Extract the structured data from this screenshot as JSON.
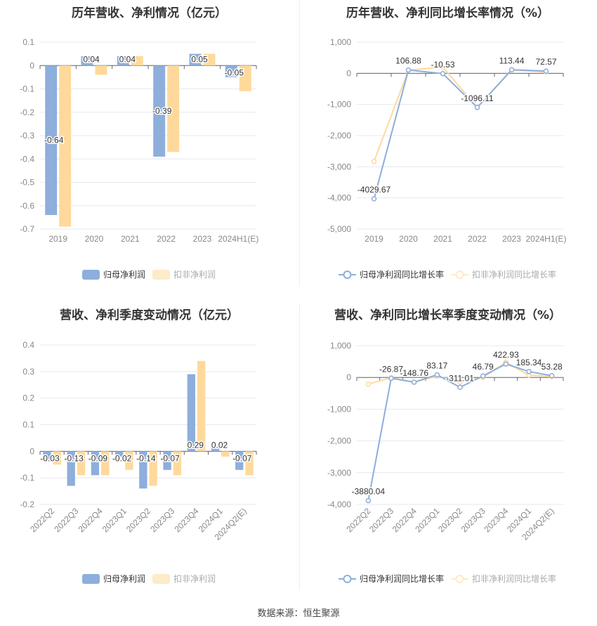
{
  "colors": {
    "blue": "#8eaedb",
    "orange": "#ffd99b",
    "orange_legend": "#fdebc9",
    "grid": "#e3e8f2",
    "axis": "#666666",
    "tick_label": "#888888",
    "title": "#333333"
  },
  "footer": {
    "source": "数据来源：恒生聚源"
  },
  "chart_data": [
    {
      "type": "bar",
      "title": "历年营收、净利情况（亿元）",
      "categories": [
        "2019",
        "2020",
        "2021",
        "2022",
        "2023",
        "2024H1(E)"
      ],
      "series": [
        {
          "name": "归母净利润",
          "values": [
            -0.64,
            0.04,
            0.04,
            -0.39,
            0.05,
            -0.05
          ],
          "labels": [
            "-0.64",
            "0.04",
            "0.04",
            "-0.39",
            "0.05",
            "-0.05"
          ]
        },
        {
          "name": "扣非净利润",
          "values": [
            -0.69,
            -0.04,
            0.04,
            -0.37,
            0.05,
            -0.11
          ]
        }
      ],
      "yticks": [
        "0.1",
        "0",
        "-0.1",
        "-0.2",
        "-0.3",
        "-0.4",
        "-0.5",
        "-0.6",
        "-0.7"
      ],
      "ylim": [
        -0.7,
        0.1
      ],
      "xlabel": "",
      "ylabel": "",
      "grid": true,
      "legend_position": "bottom"
    },
    {
      "type": "line",
      "title": "历年营收、净利同比增长率情况（%）",
      "categories": [
        "2019",
        "2020",
        "2021",
        "2022",
        "2023",
        "2024H1(E)"
      ],
      "series": [
        {
          "name": "归母净利润同比增长率",
          "values": [
            -4029.67,
            106.88,
            -10.53,
            -1096.11,
            113.44,
            72.57
          ],
          "labels": [
            "-4029.67",
            "106.88",
            "-10.53",
            "-1096.11",
            "113.44",
            "72.57"
          ]
        },
        {
          "name": "扣非净利润同比增长率",
          "values": [
            -2830,
            100,
            200,
            -1100,
            110,
            40
          ]
        }
      ],
      "yticks": [
        "1,000",
        "0",
        "-1,000",
        "-2,000",
        "-3,000",
        "-4,000",
        "-5,000"
      ],
      "ylim": [
        -5000,
        1000
      ],
      "xlabel": "",
      "ylabel": "",
      "grid": true,
      "legend_position": "bottom"
    },
    {
      "type": "bar",
      "title": "营收、净利季度变动情况（亿元）",
      "categories": [
        "2022Q2",
        "2022Q3",
        "2022Q4",
        "2023Q1",
        "2023Q2",
        "2023Q3",
        "2023Q4",
        "2024Q1",
        "2024Q2(E)"
      ],
      "series": [
        {
          "name": "归母净利润",
          "values": [
            -0.03,
            -0.13,
            -0.09,
            -0.02,
            -0.14,
            -0.07,
            0.29,
            0.02,
            -0.07
          ],
          "labels": [
            "-0.03",
            "-0.13",
            "-0.09",
            "-0.02",
            "-0.14",
            "-0.07",
            "0.29",
            "0.02",
            "-0.07"
          ]
        },
        {
          "name": "扣非净利润",
          "values": [
            -0.05,
            -0.09,
            -0.09,
            -0.07,
            -0.13,
            -0.09,
            0.34,
            -0.02,
            -0.09
          ]
        }
      ],
      "yticks": [
        "0.4",
        "0.3",
        "0.2",
        "0.1",
        "0",
        "-0.1",
        "-0.2"
      ],
      "ylim": [
        -0.2,
        0.4
      ],
      "xlabel": "",
      "ylabel": "",
      "grid": true,
      "legend_position": "bottom"
    },
    {
      "type": "line",
      "title": "营收、净利同比增长率季度变动情况（%）",
      "categories": [
        "2022Q2",
        "2022Q3",
        "2022Q4",
        "2023Q1",
        "2023Q2",
        "2023Q3",
        "2023Q4",
        "2024Q1",
        "2024Q2(E)"
      ],
      "series": [
        {
          "name": "归母净利润同比增长率",
          "values": [
            -3880.04,
            -26.87,
            -148.76,
            83.17,
            -311.01,
            46.79,
            422.93,
            185.34,
            53.28
          ],
          "labels": [
            "-3880.04",
            "-26.87",
            "-148.76",
            "83.17",
            "-311.01",
            "46.79",
            "422.93",
            "185.34",
            "53.28"
          ]
        },
        {
          "name": "扣非净利润同比增长率",
          "values": [
            -210,
            -10,
            -150,
            40,
            -150,
            0,
            480,
            70,
            30
          ]
        }
      ],
      "yticks": [
        "1,000",
        "0",
        "-1,000",
        "-2,000",
        "-3,000",
        "-4,000"
      ],
      "ylim": [
        -4000,
        1000
      ],
      "xlabel": "",
      "ylabel": "",
      "grid": true,
      "legend_position": "bottom"
    }
  ]
}
